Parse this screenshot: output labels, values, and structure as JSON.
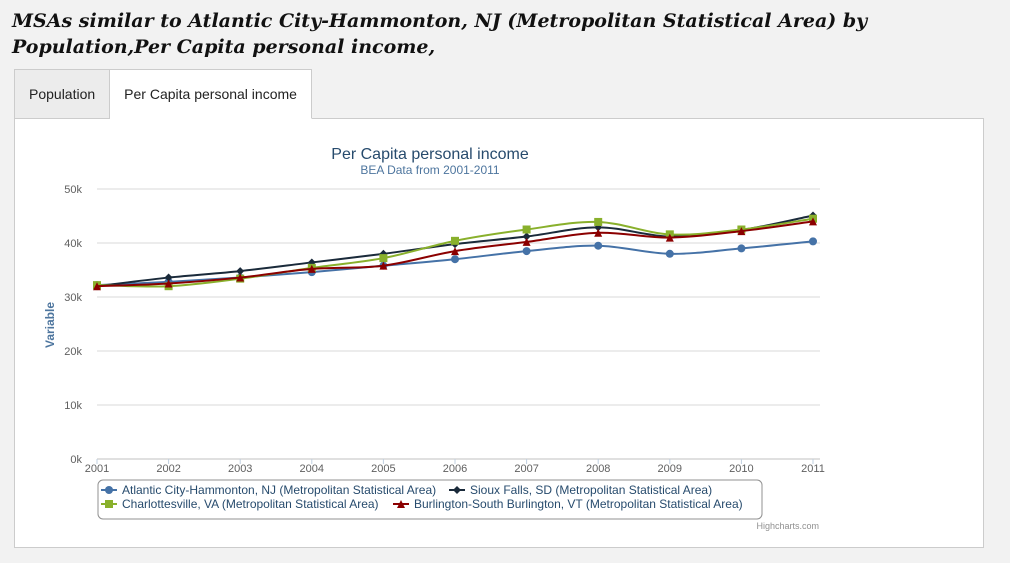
{
  "page": {
    "title": "MSAs similar to Atlantic City-Hammonton, NJ (Metropolitan Statistical Area) by Population,Per Capita personal income,"
  },
  "tabs": [
    {
      "label": "Population",
      "active": false
    },
    {
      "label": "Per Capita personal income",
      "active": true
    }
  ],
  "chart_data": {
    "type": "line",
    "title": "Per Capita personal income",
    "subtitle": "BEA Data from 2001-2011",
    "ylabel": "Variable",
    "xlabel": "",
    "x": [
      "2001",
      "2002",
      "2003",
      "2004",
      "2005",
      "2006",
      "2007",
      "2008",
      "2009",
      "2010",
      "2011"
    ],
    "ylim": [
      0,
      50000
    ],
    "yticks": [
      {
        "value": 0,
        "label": "0k"
      },
      {
        "value": 10000,
        "label": "10k"
      },
      {
        "value": 20000,
        "label": "20k"
      },
      {
        "value": 30000,
        "label": "30k"
      },
      {
        "value": 40000,
        "label": "40k"
      },
      {
        "value": 50000,
        "label": "50k"
      }
    ],
    "grid": true,
    "legend_position": "bottom",
    "credits": "Highcharts.com",
    "series": [
      {
        "name": "Atlantic City-Hammonton, NJ (Metropolitan Statistical Area)",
        "color": "#4572a7",
        "marker": "circle",
        "values": [
          32200,
          32800,
          33600,
          34600,
          35800,
          37000,
          38500,
          39500,
          38000,
          39000,
          40300
        ]
      },
      {
        "name": "Sioux Falls, SD (Metropolitan Statistical Area)",
        "color": "#1a2a3a",
        "marker": "diamond",
        "values": [
          32000,
          33600,
          34800,
          36400,
          38000,
          39800,
          41200,
          42900,
          41200,
          42400,
          45100
        ]
      },
      {
        "name": "Charlottesville, VA (Metropolitan Statistical Area)",
        "color": "#89b02c",
        "marker": "square",
        "values": [
          32200,
          32000,
          33400,
          35400,
          37200,
          40400,
          42500,
          43900,
          41600,
          42500,
          44500
        ]
      },
      {
        "name": "Burlington-South Burlington, VT (Metropolitan Statistical Area)",
        "color": "#8b0000",
        "marker": "triangle",
        "values": [
          32000,
          32500,
          33600,
          35200,
          35800,
          38500,
          40200,
          41900,
          41000,
          42200,
          44000
        ]
      }
    ]
  }
}
